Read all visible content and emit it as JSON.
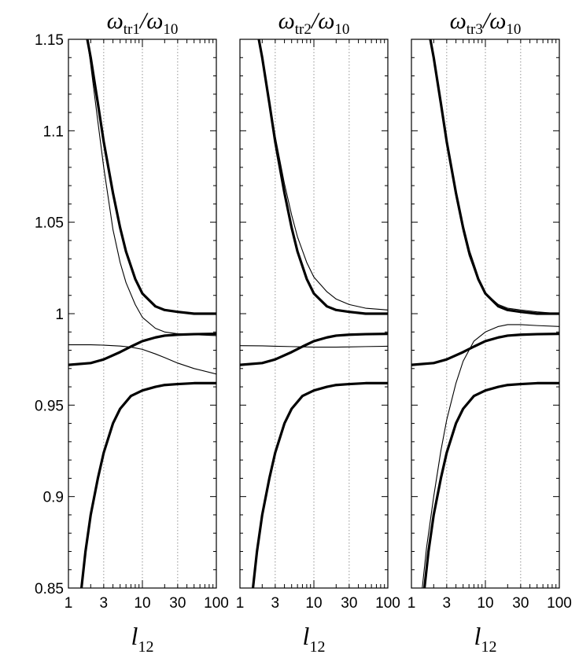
{
  "chart_data": {
    "type": "line",
    "xscale": "log",
    "xlim": [
      1,
      100
    ],
    "ylim": [
      0.85,
      1.15
    ],
    "grid_x": [
      3,
      10,
      30
    ],
    "y_ticks": [
      "0.85",
      "0.9",
      "0.95",
      "1",
      "1.05",
      "1.1",
      "1.15"
    ],
    "y_tick_values": [
      0.85,
      0.9,
      0.95,
      1.0,
      1.05,
      1.1,
      1.15
    ],
    "x_ticks": [
      "1",
      "3",
      "10",
      "30",
      "100"
    ],
    "x_tick_values": [
      1,
      3,
      10,
      30,
      100
    ],
    "xlabel": {
      "main": "l",
      "sub": "12"
    },
    "panels": [
      {
        "title": {
          "num": "ω",
          "num_sub": "tr1",
          "slash": "/",
          "den": "ω",
          "den_sub": "10"
        },
        "series": [
          {
            "style": "thick",
            "x": [
              1.8,
              2,
              2.5,
              3,
              4,
              5,
              6,
              8,
              10,
              15,
              20,
              30,
              50,
              100
            ],
            "y": [
              1.15,
              1.14,
              1.115,
              1.094,
              1.066,
              1.047,
              1.034,
              1.019,
              1.011,
              1.004,
              1.002,
              1.001,
              1.0,
              1.0
            ]
          },
          {
            "style": "thick",
            "x": [
              1,
              2,
              3,
              5,
              7,
              10,
              15,
              20,
              30,
              50,
              100
            ],
            "y": [
              0.972,
              0.973,
              0.975,
              0.979,
              0.982,
              0.985,
              0.987,
              0.988,
              0.9885,
              0.9888,
              0.989
            ]
          },
          {
            "style": "thick",
            "x": [
              1.5,
              1.7,
              2,
              2.5,
              3,
              4,
              5,
              7,
              10,
              15,
              20,
              30,
              50,
              100
            ],
            "y": [
              0.85,
              0.87,
              0.89,
              0.91,
              0.924,
              0.94,
              0.948,
              0.955,
              0.958,
              0.96,
              0.961,
              0.9615,
              0.962,
              0.962
            ]
          },
          {
            "style": "thin",
            "x": [
              1.8,
              2,
              2.5,
              3,
              4,
              5,
              6,
              8,
              10,
              15,
              20,
              30,
              50,
              100
            ],
            "y": [
              1.15,
              1.136,
              1.105,
              1.08,
              1.046,
              1.028,
              1.017,
              1.005,
              0.998,
              0.992,
              0.99,
              0.989,
              0.9885,
              0.988
            ]
          },
          {
            "style": "thin",
            "x": [
              1,
              2,
              3,
              5,
              7,
              10,
              15,
              20,
              30,
              50,
              100
            ],
            "y": [
              0.983,
              0.983,
              0.9828,
              0.9823,
              0.9817,
              0.9805,
              0.978,
              0.976,
              0.973,
              0.97,
              0.967
            ]
          }
        ]
      },
      {
        "title": {
          "num": "ω",
          "num_sub": "tr2",
          "slash": "/",
          "den": "ω",
          "den_sub": "10"
        },
        "series": [
          {
            "style": "thick",
            "x": [
              1.8,
              2,
              2.5,
              3,
              4,
              5,
              6,
              8,
              10,
              15,
              20,
              30,
              50,
              100
            ],
            "y": [
              1.15,
              1.14,
              1.115,
              1.094,
              1.066,
              1.047,
              1.034,
              1.019,
              1.011,
              1.004,
              1.002,
              1.001,
              1.0,
              1.0
            ]
          },
          {
            "style": "thick",
            "x": [
              1,
              2,
              3,
              5,
              7,
              10,
              15,
              20,
              30,
              50,
              100
            ],
            "y": [
              0.972,
              0.973,
              0.975,
              0.979,
              0.982,
              0.985,
              0.987,
              0.988,
              0.9885,
              0.9888,
              0.989
            ]
          },
          {
            "style": "thick",
            "x": [
              1.5,
              1.7,
              2,
              2.5,
              3,
              4,
              5,
              7,
              10,
              15,
              20,
              30,
              50,
              100
            ],
            "y": [
              0.85,
              0.87,
              0.89,
              0.91,
              0.924,
              0.94,
              0.948,
              0.955,
              0.958,
              0.96,
              0.961,
              0.9615,
              0.962,
              0.962
            ]
          },
          {
            "style": "thin",
            "x": [
              1.8,
              2,
              2.5,
              3,
              4,
              5,
              6,
              8,
              10,
              15,
              20,
              30,
              50,
              100
            ],
            "y": [
              1.15,
              1.14,
              1.116,
              1.097,
              1.071,
              1.054,
              1.042,
              1.028,
              1.02,
              1.012,
              1.008,
              1.005,
              1.003,
              1.002
            ]
          },
          {
            "style": "thin",
            "x": [
              1,
              2,
              3,
              5,
              10,
              20,
              30,
              50,
              100
            ],
            "y": [
              0.9825,
              0.9824,
              0.9822,
              0.982,
              0.9817,
              0.9817,
              0.9818,
              0.982,
              0.9822
            ]
          }
        ]
      },
      {
        "title": {
          "num": "ω",
          "num_sub": "tr3",
          "slash": "/",
          "den": "ω",
          "den_sub": "10"
        },
        "series": [
          {
            "style": "thick",
            "x": [
              1.8,
              2,
              2.5,
              3,
              4,
              5,
              6,
              8,
              10,
              15,
              20,
              30,
              50,
              100
            ],
            "y": [
              1.15,
              1.14,
              1.115,
              1.094,
              1.066,
              1.047,
              1.034,
              1.019,
              1.011,
              1.004,
              1.002,
              1.001,
              1.0,
              1.0
            ]
          },
          {
            "style": "thick",
            "x": [
              1,
              2,
              3,
              5,
              7,
              10,
              15,
              20,
              30,
              50,
              100
            ],
            "y": [
              0.972,
              0.973,
              0.975,
              0.979,
              0.982,
              0.985,
              0.987,
              0.988,
              0.9885,
              0.9888,
              0.989
            ]
          },
          {
            "style": "thick",
            "x": [
              1.5,
              1.7,
              2,
              2.5,
              3,
              4,
              5,
              7,
              10,
              15,
              20,
              30,
              50,
              100
            ],
            "y": [
              0.85,
              0.87,
              0.89,
              0.91,
              0.924,
              0.94,
              0.948,
              0.955,
              0.958,
              0.96,
              0.961,
              0.9615,
              0.962,
              0.962
            ]
          },
          {
            "style": "thin",
            "x": [
              1.8,
              2,
              2.5,
              3,
              4,
              5,
              6,
              8,
              10,
              15,
              20,
              30,
              50,
              100
            ],
            "y": [
              1.15,
              1.14,
              1.115,
              1.093,
              1.064,
              1.045,
              1.032,
              1.018,
              1.011,
              1.005,
              1.003,
              1.002,
              1.001,
              1.0
            ]
          },
          {
            "style": "thin",
            "x": [
              1.4,
              1.6,
              2,
              2.5,
              3,
              4,
              5,
              7,
              10,
              15,
              20,
              30,
              50,
              100
            ],
            "y": [
              0.85,
              0.872,
              0.9,
              0.925,
              0.942,
              0.962,
              0.974,
              0.985,
              0.99,
              0.993,
              0.994,
              0.994,
              0.9935,
              0.993
            ]
          }
        ]
      }
    ]
  }
}
